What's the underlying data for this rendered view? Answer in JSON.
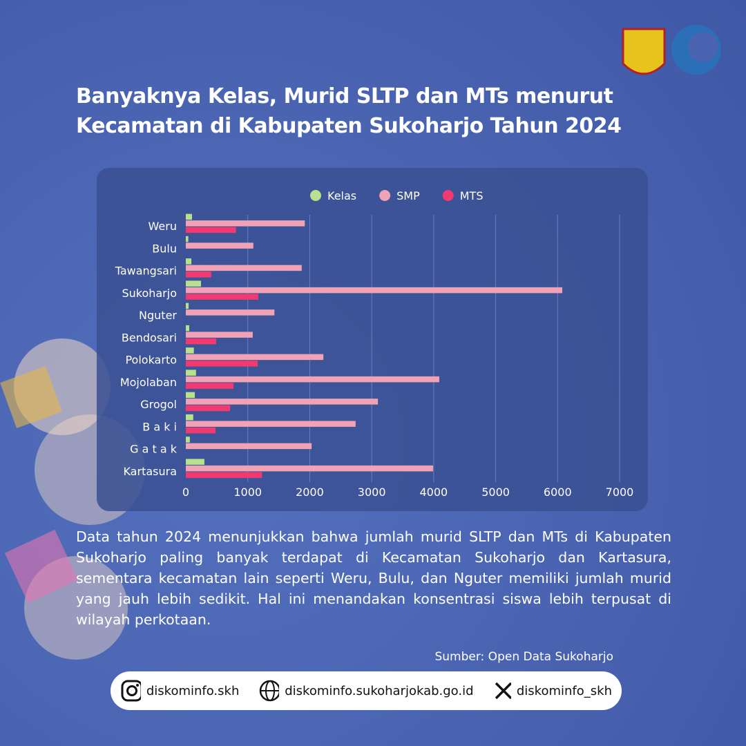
{
  "chart_data": {
    "type": "hbar",
    "title": "Banyaknya Kelas, Murid SLTP dan MTs menurut Kecamatan di Kabupaten Sukoharjo Tahun 2024",
    "categories": [
      "Weru",
      "Bulu",
      "Tawangsari",
      "Sukoharjo",
      "Nguter",
      "Bendosari",
      "Polokarto",
      "Mojolaban",
      "Grogol",
      "B a k i",
      "G a t a k",
      "Kartasura"
    ],
    "series": [
      {
        "name": "Kelas",
        "color": "#b9e08a",
        "values": [
          100,
          40,
          90,
          245,
          45,
          55,
          130,
          165,
          145,
          120,
          65,
          300
        ]
      },
      {
        "name": "SMP",
        "color": "#f0a3b6",
        "values": [
          1920,
          1090,
          1870,
          6075,
          1430,
          1080,
          2220,
          4090,
          3100,
          2740,
          2030,
          3990
        ]
      },
      {
        "name": "MTS",
        "color": "#f23a70",
        "values": [
          810,
          0,
          410,
          1170,
          0,
          490,
          1160,
          770,
          715,
          480,
          0,
          1230
        ]
      }
    ],
    "xlim": [
      0,
      7000
    ],
    "xticks": [
      0,
      1000,
      2000,
      3000,
      4000,
      5000,
      6000,
      7000
    ],
    "grid": true,
    "legend": "top"
  },
  "description": "Data tahun 2024 menunjukkan bahwa jumlah murid SLTP dan MTs di Kabupaten Sukoharjo paling banyak terdapat di Kecamatan Sukoharjo dan Kartasura, sementara kecamatan lain seperti Weru, Bulu, dan Nguter memiliki jumlah murid yang jauh lebih sedikit. Hal ini menandakan konsentrasi siswa lebih terpusat di wilayah perkotaan.",
  "source": "Sumber: Open Data Sukoharjo",
  "footer": {
    "instagram": "diskominfo.skh",
    "website": "diskominfo.sukoharjokab.go.id",
    "x": "diskominfo_skh"
  }
}
